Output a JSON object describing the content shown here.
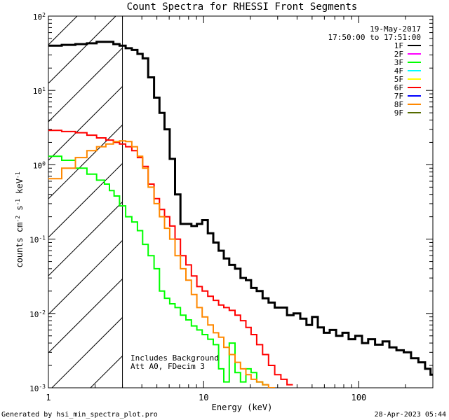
{
  "chart_data": {
    "type": "line",
    "title": "Count Spectra for RHESSI Front Segments",
    "xlabel": "Energy (keV)",
    "ylabel": "counts cm-2 s-1 keV-1",
    "xscale": "log",
    "yscale": "log",
    "xlim": [
      1,
      300
    ],
    "ylim": [
      0.001,
      100
    ],
    "x_ticks": [
      {
        "value": 1,
        "label": "1"
      },
      {
        "value": 10,
        "label": "10"
      },
      {
        "value": 100,
        "label": "100"
      }
    ],
    "y_ticks": [
      {
        "value": 0.001,
        "base": "10",
        "exp": "-3"
      },
      {
        "value": 0.01,
        "base": "10",
        "exp": "-2"
      },
      {
        "value": 0.1,
        "base": "10",
        "exp": "-1"
      },
      {
        "value": 1,
        "base": "10",
        "exp": "0"
      },
      {
        "value": 10,
        "base": "10",
        "exp": "1"
      },
      {
        "value": 100,
        "base": "10",
        "exp": "2"
      }
    ],
    "date": "19-May-2017",
    "time_range": "17:50:00 to 17:51:00",
    "annotation_lines": [
      "Includes Background",
      "Att A0, FDecim 3"
    ],
    "hatched_region_max_keV": 3,
    "legend": [
      {
        "label": "1F",
        "color": "#000000"
      },
      {
        "label": "2F",
        "color": "#ff00ff"
      },
      {
        "label": "3F",
        "color": "#00ff00"
      },
      {
        "label": "4F",
        "color": "#00ffff"
      },
      {
        "label": "5F",
        "color": "#ffff00"
      },
      {
        "label": "6F",
        "color": "#ff0000"
      },
      {
        "label": "7F",
        "color": "#0000ff"
      },
      {
        "label": "8F",
        "color": "#ff8800"
      },
      {
        "label": "9F",
        "color": "#556b00"
      }
    ],
    "series": [
      {
        "name": "3F",
        "color": "#00ff00",
        "width": 2,
        "points": [
          [
            1.1,
            1.3
          ],
          [
            1.35,
            1.15
          ],
          [
            1.65,
            0.9
          ],
          [
            1.9,
            0.75
          ],
          [
            2.2,
            0.62
          ],
          [
            2.4,
            0.55
          ],
          [
            2.55,
            0.45
          ],
          [
            2.75,
            0.38
          ],
          [
            3.0,
            0.28
          ],
          [
            3.3,
            0.2
          ],
          [
            3.6,
            0.17
          ],
          [
            3.9,
            0.13
          ],
          [
            4.2,
            0.085
          ],
          [
            4.6,
            0.06
          ],
          [
            5.0,
            0.04
          ],
          [
            5.4,
            0.02
          ],
          [
            5.8,
            0.016
          ],
          [
            6.3,
            0.0135
          ],
          [
            6.8,
            0.012
          ],
          [
            7.4,
            0.0095
          ],
          [
            8.0,
            0.0082
          ],
          [
            8.7,
            0.0068
          ],
          [
            9.4,
            0.006
          ],
          [
            10.2,
            0.0052
          ],
          [
            11.1,
            0.0045
          ],
          [
            12.0,
            0.0038
          ],
          [
            13.0,
            0.0018
          ],
          [
            14.0,
            0.0012
          ],
          [
            15.3,
            0.004
          ],
          [
            16.6,
            0.0016
          ],
          [
            18.0,
            0.0012
          ],
          [
            19.5,
            0.0018
          ],
          [
            21.0,
            0.0016
          ],
          [
            23.0,
            0.0012
          ],
          [
            25.0,
            0.0011
          ]
        ]
      },
      {
        "name": "6F",
        "color": "#ff0000",
        "width": 2,
        "points": [
          [
            1.1,
            2.9
          ],
          [
            1.35,
            2.8
          ],
          [
            1.65,
            2.7
          ],
          [
            1.9,
            2.5
          ],
          [
            2.2,
            2.3
          ],
          [
            2.5,
            2.15
          ],
          [
            2.75,
            2.0
          ],
          [
            3.0,
            1.9
          ],
          [
            3.3,
            1.75
          ],
          [
            3.6,
            1.55
          ],
          [
            3.9,
            1.25
          ],
          [
            4.2,
            0.95
          ],
          [
            4.6,
            0.55
          ],
          [
            5.0,
            0.35
          ],
          [
            5.4,
            0.25
          ],
          [
            5.8,
            0.2
          ],
          [
            6.3,
            0.15
          ],
          [
            6.8,
            0.1
          ],
          [
            7.4,
            0.06
          ],
          [
            8.0,
            0.045
          ],
          [
            8.7,
            0.032
          ],
          [
            9.4,
            0.023
          ],
          [
            10.2,
            0.02
          ],
          [
            11.1,
            0.017
          ],
          [
            12.0,
            0.015
          ],
          [
            13.0,
            0.013
          ],
          [
            14.0,
            0.012
          ],
          [
            15.3,
            0.011
          ],
          [
            16.6,
            0.0095
          ],
          [
            18.0,
            0.008
          ],
          [
            19.5,
            0.0065
          ],
          [
            21.0,
            0.0052
          ],
          [
            23.0,
            0.0038
          ],
          [
            25.0,
            0.0028
          ],
          [
            27.5,
            0.002
          ],
          [
            30.0,
            0.0015
          ],
          [
            33.0,
            0.0013
          ],
          [
            36.0,
            0.0011
          ]
        ]
      },
      {
        "name": "8F",
        "color": "#ff8800",
        "width": 2,
        "points": [
          [
            1.1,
            0.65
          ],
          [
            1.35,
            0.9
          ],
          [
            1.65,
            1.25
          ],
          [
            1.9,
            1.55
          ],
          [
            2.2,
            1.75
          ],
          [
            2.5,
            1.9
          ],
          [
            2.75,
            2.05
          ],
          [
            3.0,
            2.1
          ],
          [
            3.3,
            2.05
          ],
          [
            3.6,
            1.75
          ],
          [
            3.9,
            1.3
          ],
          [
            4.2,
            0.9
          ],
          [
            4.6,
            0.5
          ],
          [
            5.0,
            0.3
          ],
          [
            5.4,
            0.2
          ],
          [
            5.8,
            0.14
          ],
          [
            6.3,
            0.1
          ],
          [
            6.8,
            0.06
          ],
          [
            7.4,
            0.04
          ],
          [
            8.0,
            0.028
          ],
          [
            8.7,
            0.018
          ],
          [
            9.4,
            0.012
          ],
          [
            10.2,
            0.009
          ],
          [
            11.1,
            0.007
          ],
          [
            12.0,
            0.0055
          ],
          [
            13.0,
            0.0048
          ],
          [
            14.0,
            0.0035
          ],
          [
            15.3,
            0.0028
          ],
          [
            16.6,
            0.0022
          ],
          [
            18.0,
            0.0018
          ],
          [
            19.5,
            0.0015
          ],
          [
            21.0,
            0.0013
          ],
          [
            23.0,
            0.0012
          ],
          [
            25.0,
            0.0011
          ],
          [
            27.5,
            0.001
          ]
        ]
      },
      {
        "name": "1F",
        "color": "#000000",
        "width": 3,
        "points": [
          [
            1.1,
            40
          ],
          [
            1.35,
            41
          ],
          [
            1.65,
            42
          ],
          [
            1.9,
            43
          ],
          [
            2.2,
            45
          ],
          [
            2.5,
            45
          ],
          [
            2.75,
            42
          ],
          [
            3.0,
            40
          ],
          [
            3.3,
            37
          ],
          [
            3.6,
            35
          ],
          [
            3.9,
            31
          ],
          [
            4.2,
            27
          ],
          [
            4.6,
            15
          ],
          [
            5.0,
            8
          ],
          [
            5.4,
            5
          ],
          [
            5.8,
            3
          ],
          [
            6.3,
            1.2
          ],
          [
            6.8,
            0.4
          ],
          [
            7.4,
            0.16
          ],
          [
            8.0,
            0.16
          ],
          [
            8.7,
            0.15
          ],
          [
            9.4,
            0.16
          ],
          [
            10.2,
            0.18
          ],
          [
            11.1,
            0.12
          ],
          [
            12.0,
            0.09
          ],
          [
            13.0,
            0.07
          ],
          [
            14.0,
            0.055
          ],
          [
            15.3,
            0.045
          ],
          [
            16.6,
            0.04
          ],
          [
            18.0,
            0.03
          ],
          [
            19.5,
            0.028
          ],
          [
            21.0,
            0.022
          ],
          [
            23.0,
            0.02
          ],
          [
            25.0,
            0.016
          ],
          [
            27.5,
            0.014
          ],
          [
            30.0,
            0.012
          ],
          [
            33.0,
            0.012
          ],
          [
            36.0,
            0.0095
          ],
          [
            40.0,
            0.01
          ],
          [
            44.0,
            0.0085
          ],
          [
            48.0,
            0.007
          ],
          [
            52.0,
            0.009
          ],
          [
            57.0,
            0.0065
          ],
          [
            62.0,
            0.0055
          ],
          [
            68.0,
            0.006
          ],
          [
            75.0,
            0.005
          ],
          [
            82.0,
            0.0055
          ],
          [
            90.0,
            0.0045
          ],
          [
            100.0,
            0.005
          ],
          [
            110.0,
            0.004
          ],
          [
            120.0,
            0.0045
          ],
          [
            135.0,
            0.0038
          ],
          [
            150.0,
            0.0042
          ],
          [
            165.0,
            0.0035
          ],
          [
            185.0,
            0.0032
          ],
          [
            205.0,
            0.003
          ],
          [
            230.0,
            0.0025
          ],
          [
            255.0,
            0.0022
          ],
          [
            280.0,
            0.0018
          ],
          [
            300.0,
            0.0015
          ]
        ]
      }
    ]
  },
  "footer": {
    "generator": "Generated by hsi_min_spectra_plot.pro",
    "timestamp": "28-Apr-2023 05:44"
  }
}
